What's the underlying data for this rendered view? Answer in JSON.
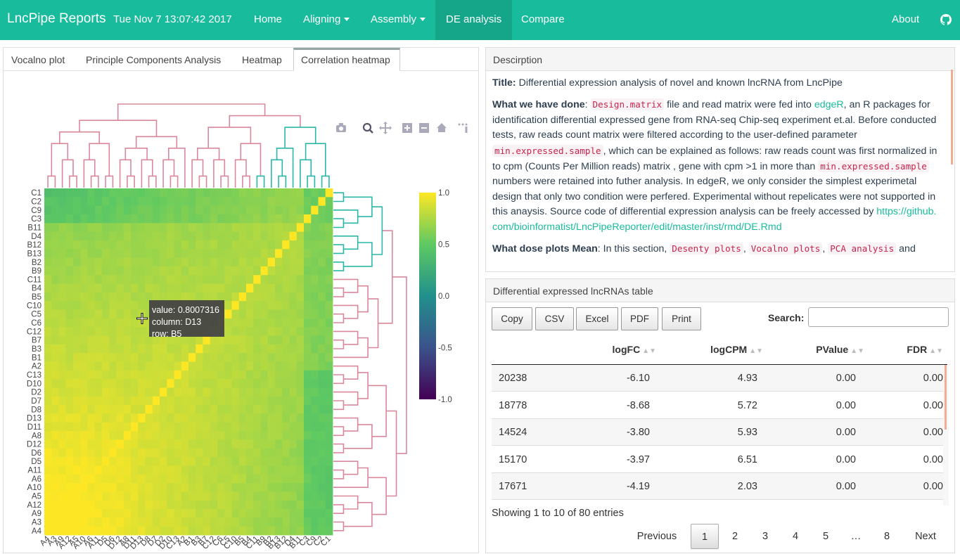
{
  "navbar": {
    "brand": "LncPipe Reports",
    "date": "Tue Nov 7 13:07:42 2017",
    "items": [
      {
        "label": "Home"
      },
      {
        "label": "Aligning"
      },
      {
        "label": "Assembly"
      },
      {
        "label": "DE analysis"
      },
      {
        "label": "Compare"
      }
    ],
    "about": "About",
    "github_icon": "github-icon"
  },
  "tabs": [
    "Vocalno plot",
    "Principle Components Analysis",
    "Heatmap",
    "Correlation heatmap"
  ],
  "chart_data": {
    "type": "heatmap",
    "rows": [
      "C1",
      "C2",
      "C9",
      "C3",
      "B11",
      "D4",
      "B12",
      "B13",
      "B2",
      "B9",
      "C11",
      "B4",
      "B5",
      "C10",
      "C5",
      "C6",
      "C12",
      "B7",
      "B3",
      "B1",
      "A2",
      "C13",
      "D10",
      "D2",
      "D7",
      "D8",
      "D13",
      "D11",
      "A8",
      "D12",
      "D6",
      "D5",
      "A11",
      "A6",
      "A10",
      "A5",
      "A12",
      "A9",
      "A3",
      "A4"
    ],
    "columns": [
      "A4",
      "A3",
      "A9",
      "A12",
      "A5",
      "A10",
      "A6",
      "A11",
      "D5",
      "D6",
      "D12",
      "A8",
      "D11",
      "D13",
      "D8",
      "D7",
      "D2",
      "D10",
      "C13",
      "A2",
      "B1",
      "B3",
      "B7",
      "C12",
      "C6",
      "C5",
      "C10",
      "B5",
      "B4",
      "C11",
      "B9",
      "B2",
      "B13",
      "B12",
      "D4",
      "B11",
      "C3",
      "C9",
      "C2",
      "C1"
    ],
    "colorbar": {
      "ticks": [
        "1.0",
        "0.5",
        "0.0",
        "-0.5",
        "-1.0"
      ],
      "range": [
        -1,
        1
      ]
    },
    "tooltip": {
      "value": "value: 0.8007316",
      "column": "column: D13",
      "row": "row: B5"
    }
  },
  "modebar": [
    "camera-icon",
    "zoom-icon",
    "pan-icon",
    "zoom-in-icon",
    "zoom-out-icon",
    "reset-axes-icon",
    "plotly-logo-icon"
  ],
  "description": {
    "header": "Descirption",
    "title_label": "Title:",
    "title_text": " Differential expression analysis of novel and known lncRNA from LncPipe",
    "done_label": "What we have done",
    "done_1": ": ",
    "code_design": "Design.matrix",
    "done_2": " file and read matrix were fed into ",
    "edger_link": "edgeR",
    "done_3": ", an R packages for identification differential expressed gene from RNA-seq Chip-seq experiment et.al. Before conducted tests, raw reads count matrix were filtered according to the user-defined parameter ",
    "code_min1": "min.expressed.sample",
    "done_4": ", which can be explained as follows: raw reads count was first normalized in to cpm (Counts Per Million reads) matrix , gene with cpm >1 in more than ",
    "code_min2": "min.expressed.sample",
    "done_5": " numbers were retained into futher analysis. In edgeR, we only consider the simplest experimetal design that only two condition were perfered. Experimental without repelicates were not supported in this anaysis. Source code of differential expression analysis can be freely accessed by ",
    "source_link": "https://github.com/bioinformatist/LncPipeReporter/edit/master/inst/rmd/DE.Rmd",
    "mean_label": "What dose plots Mean",
    "mean_1": ": In this section, ",
    "code_desenty": "Desenty plots",
    "mean_sep1": ", ",
    "code_vocalno": "Vocalno plots",
    "mean_sep2": ", ",
    "code_pca": "PCA analysis",
    "mean_2": " and"
  },
  "table": {
    "header": "Differential expressed lncRNAs table",
    "buttons": [
      "Copy",
      "CSV",
      "Excel",
      "PDF",
      "Print"
    ],
    "search_label": "Search:",
    "search_value": "",
    "columns": [
      "logFC",
      "logCPM",
      "PValue",
      "FDR"
    ],
    "rows": [
      {
        "id": "20238",
        "logFC": "-6.10",
        "logCPM": "4.93",
        "PValue": "0.00",
        "FDR": "0.00"
      },
      {
        "id": "18778",
        "logFC": "-8.68",
        "logCPM": "5.72",
        "PValue": "0.00",
        "FDR": "0.00"
      },
      {
        "id": "14524",
        "logFC": "-3.80",
        "logCPM": "5.93",
        "PValue": "0.00",
        "FDR": "0.00"
      },
      {
        "id": "15170",
        "logFC": "-3.97",
        "logCPM": "6.51",
        "PValue": "0.00",
        "FDR": "0.00"
      },
      {
        "id": "17671",
        "logFC": "-4.19",
        "logCPM": "2.03",
        "PValue": "0.00",
        "FDR": "0.00"
      }
    ],
    "info": "Showing 1 to 10 of 80 entries",
    "pagination": {
      "previous": "Previous",
      "pages": [
        "1",
        "2",
        "3",
        "4",
        "5",
        "…",
        "8"
      ],
      "next": "Next"
    }
  },
  "colors": {
    "navbar": "#18bc9c",
    "navbar_active": "#15a589",
    "dendro_pink": "#d9889c",
    "dendro_teal": "#2ab7a9",
    "code": "#c7254e",
    "link": "#18bc9c"
  }
}
